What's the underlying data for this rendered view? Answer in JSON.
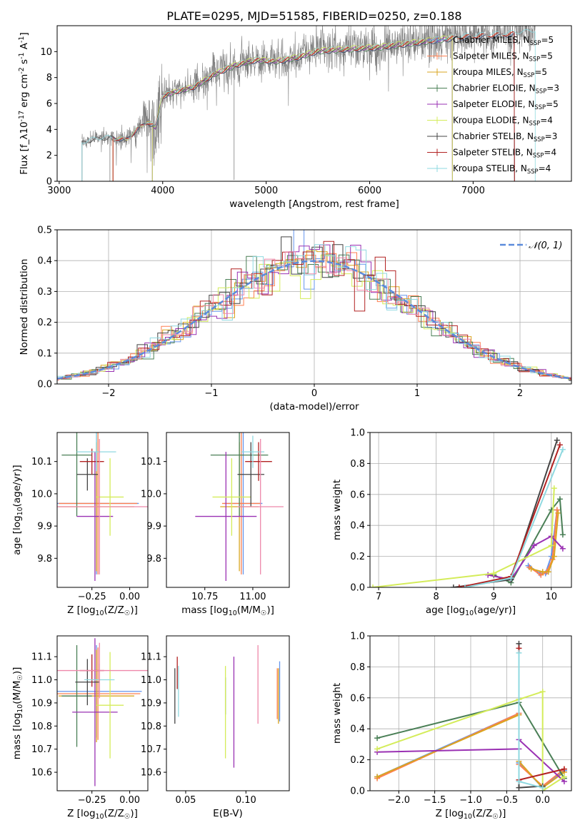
{
  "figure": {
    "title": "PLATE=0295, MJD=51585, FIBERID=0250, z=0.188"
  },
  "colors": {
    "spectrum": "#808080",
    "Chabrier MILES": "#6495ed",
    "Salpeter MILES": "#ff7f50",
    "Kroupa MILES": "#daa520",
    "Chabrier ELODIE": "#4a7f56",
    "Salpeter ELODIE": "#9a31b3",
    "Kroupa ELODIE": "#d4ec5a",
    "Chabrier STELIB": "#444444",
    "Salpeter STELIB": "#b22222",
    "Kroupa STELIB": "#8fd9e0",
    "normal": "#5b8bdb",
    "pink": "#ee88aa"
  },
  "chart_data": [
    {
      "type": "line",
      "panel": "spectrum",
      "xlabel": "wavelength [Angstrom, rest frame]",
      "ylabel": "Flux [f_λ10^-17 erg cm^-2 s^-1 A^-1]",
      "xlim": [
        2980,
        7950
      ],
      "ylim": [
        0,
        12
      ],
      "xticks": [
        3000,
        4000,
        5000,
        6000,
        7000
      ],
      "yticks": [
        0,
        2,
        4,
        6,
        8,
        10
      ],
      "legend": "upper right",
      "series_names": [
        "Chabrier MILES",
        "Salpeter MILES",
        "Kroupa MILES",
        "Chabrier ELODIE",
        "Salpeter ELODIE",
        "Kroupa ELODIE",
        "Chabrier STELIB",
        "Salpeter STELIB",
        "Kroupa STELIB"
      ],
      "legend_labels": [
        {
          "series": "Chabrier MILES",
          "pre": "Chabrier MILES, N",
          "sub": "SSP",
          "post": "=5"
        },
        {
          "series": "Salpeter MILES",
          "pre": "Salpeter MILES, N",
          "sub": "SSP",
          "post": "=5"
        },
        {
          "series": "Kroupa MILES",
          "pre": "Kroupa MILES, N",
          "sub": "SSP",
          "post": "=5"
        },
        {
          "series": "Chabrier ELODIE",
          "pre": "Chabrier ELODIE, N",
          "sub": "SSP",
          "post": "=3"
        },
        {
          "series": "Salpeter ELODIE",
          "pre": "Salpeter ELODIE, N",
          "sub": "SSP",
          "post": "=5"
        },
        {
          "series": "Kroupa ELODIE",
          "pre": "Kroupa ELODIE, N",
          "sub": "SSP",
          "post": "=4"
        },
        {
          "series": "Chabrier STELIB",
          "pre": "Chabrier STELIB, N",
          "sub": "SSP",
          "post": "=3"
        },
        {
          "series": "Salpeter STELIB",
          "pre": "Salpeter STELIB, N",
          "sub": "SSP",
          "post": "=4"
        },
        {
          "series": "Kroupa STELIB",
          "pre": "Kroupa STELIB, N",
          "sub": "SSP",
          "post": "=4"
        }
      ],
      "continuum": [
        [
          3220,
          3.0
        ],
        [
          3350,
          3.3
        ],
        [
          3500,
          3.4
        ],
        [
          3650,
          3.2
        ],
        [
          3750,
          4.0
        ],
        [
          3850,
          4.6
        ],
        [
          3930,
          4.2
        ],
        [
          4000,
          6.6
        ],
        [
          4150,
          7.0
        ],
        [
          4300,
          7.3
        ],
        [
          4500,
          8.3
        ],
        [
          4700,
          9.0
        ],
        [
          4900,
          9.4
        ],
        [
          5100,
          9.3
        ],
        [
          5300,
          9.6
        ],
        [
          5500,
          10.1
        ],
        [
          5700,
          10.2
        ],
        [
          5900,
          10.3
        ],
        [
          6100,
          10.4
        ],
        [
          6300,
          10.6
        ],
        [
          6500,
          10.8
        ],
        [
          6700,
          11.0
        ],
        [
          6900,
          11.2
        ],
        [
          7100,
          11.3
        ],
        [
          7300,
          11.4
        ],
        [
          7500,
          11.5
        ],
        [
          7600,
          11.6
        ]
      ],
      "model_ranges": {
        "Chabrier MILES": [
          3520,
          7400
        ],
        "Salpeter MILES": [
          3520,
          7400
        ],
        "Kroupa MILES": [
          3520,
          6800
        ],
        "Chabrier ELODIE": [
          3900,
          6800
        ],
        "Salpeter ELODIE": [
          3900,
          6800
        ],
        "Kroupa ELODIE": [
          3900,
          6800
        ],
        "Chabrier STELIB": [
          3220,
          7400
        ],
        "Salpeter STELIB": [
          3520,
          7400
        ],
        "Kroupa STELIB": [
          3220,
          7600
        ]
      }
    },
    {
      "type": "line",
      "panel": "residuals",
      "xlabel": "(data-model)/error",
      "ylabel": "Normed distribution",
      "xlim": [
        -2.5,
        2.5
      ],
      "ylim": [
        0,
        0.5
      ],
      "xticks": [
        -2,
        -1,
        0,
        1,
        2
      ],
      "yticks": [
        0.0,
        0.1,
        0.2,
        0.3,
        0.4,
        0.5
      ],
      "grid": true,
      "legend": "upper right",
      "legend_label": "𝒩(0, 1)",
      "bin_width": 0.1
    },
    {
      "type": "scatter",
      "panel": "age-vs-Z",
      "xlabel": "Z [log10(Z/Z☉)]",
      "ylabel": "age [log10(age/yr)]",
      "xlim": [
        -0.48,
        0.12
      ],
      "ylim": [
        9.71,
        10.19
      ],
      "xticks": [
        -0.25,
        0.0
      ],
      "yticks": [
        9.8,
        9.9,
        10.0,
        10.1
      ],
      "points": [
        {
          "series": "Chabrier MILES",
          "x": -0.22,
          "y": 9.97,
          "xerr": 0.28,
          "yerr": 0.22
        },
        {
          "series": "Salpeter MILES",
          "x": -0.21,
          "y": 9.97,
          "xerr": 0.26,
          "yerr": 0.22
        },
        {
          "series": "Kroupa MILES",
          "x": -0.22,
          "y": 9.96,
          "xerr": 0.25,
          "yerr": 0.2
        },
        {
          "series": "Chabrier ELODIE",
          "x": -0.35,
          "y": 10.12,
          "xerr": 0.1,
          "yerr": 0.19
        },
        {
          "series": "Salpeter ELODIE",
          "x": -0.23,
          "y": 9.93,
          "xerr": 0.12,
          "yerr": 0.2
        },
        {
          "series": "Kroupa ELODIE",
          "x": -0.13,
          "y": 9.99,
          "xerr": 0.09,
          "yerr": 0.12
        },
        {
          "series": "Chabrier STELIB",
          "x": -0.28,
          "y": 10.06,
          "xerr": 0.07,
          "yerr": 0.05
        },
        {
          "series": "Salpeter STELIB",
          "x": -0.25,
          "y": 10.1,
          "xerr": 0.08,
          "yerr": 0.04
        },
        {
          "series": "Kroupa STELIB",
          "x": -0.22,
          "y": 10.13,
          "xerr": 0.13,
          "yerr": 0.06
        },
        {
          "series": "pink",
          "x": -0.2,
          "y": 9.96,
          "xerr": 0.32,
          "yerr": 0.21
        }
      ]
    },
    {
      "type": "scatter",
      "panel": "age-vs-mass",
      "xlabel": "mass [log10(M/M☉)]",
      "ylabel": "",
      "xlim": [
        10.55,
        11.19
      ],
      "ylim": [
        9.71,
        10.19
      ],
      "xticks": [
        10.75,
        11.0
      ],
      "yticks": [
        9.8,
        9.9,
        10.0,
        10.1
      ],
      "points": [
        {
          "series": "Chabrier MILES",
          "x": 10.95,
          "y": 9.97,
          "xerr": 0.1,
          "yerr": 0.22
        },
        {
          "series": "Salpeter MILES",
          "x": 10.94,
          "y": 9.97,
          "xerr": 0.1,
          "yerr": 0.22
        },
        {
          "series": "Kroupa MILES",
          "x": 10.93,
          "y": 9.96,
          "xerr": 0.1,
          "yerr": 0.2
        },
        {
          "series": "Chabrier ELODIE",
          "x": 10.93,
          "y": 10.12,
          "xerr": 0.15,
          "yerr": 0.19
        },
        {
          "series": "Salpeter ELODIE",
          "x": 10.86,
          "y": 9.93,
          "xerr": 0.16,
          "yerr": 0.2
        },
        {
          "series": "Kroupa ELODIE",
          "x": 10.89,
          "y": 9.99,
          "xerr": 0.1,
          "yerr": 0.12
        },
        {
          "series": "Chabrier STELIB",
          "x": 10.99,
          "y": 10.06,
          "xerr": 0.07,
          "yerr": 0.1
        },
        {
          "series": "Salpeter STELIB",
          "x": 11.03,
          "y": 10.1,
          "xerr": 0.07,
          "yerr": 0.06
        },
        {
          "series": "Kroupa STELIB",
          "x": 11.0,
          "y": 10.13,
          "xerr": 0.06,
          "yerr": 0.05
        },
        {
          "series": "pink",
          "x": 11.04,
          "y": 9.96,
          "xerr": 0.12,
          "yerr": 0.21
        }
      ]
    },
    {
      "type": "line",
      "panel": "weight-vs-age",
      "xlabel": "age [log10(age/yr)]",
      "ylabel": "mass weight",
      "xlim": [
        6.85,
        10.35
      ],
      "ylim": [
        0,
        1
      ],
      "xticks": [
        7,
        8,
        9,
        10
      ],
      "yticks": [
        0.0,
        0.2,
        0.4,
        0.6,
        0.8,
        1.0
      ],
      "grid": true,
      "series": [
        {
          "name": "Chabrier MILES",
          "x": [
            9.6,
            9.8,
            9.9,
            10.0,
            10.1
          ],
          "y": [
            0.14,
            0.09,
            0.09,
            0.2,
            0.5
          ]
        },
        {
          "name": "Salpeter MILES",
          "x": [
            9.62,
            9.82,
            9.92,
            10.02,
            10.1
          ],
          "y": [
            0.13,
            0.08,
            0.1,
            0.18,
            0.5
          ]
        },
        {
          "name": "Kroupa MILES",
          "x": [
            9.65,
            9.85,
            9.95,
            10.05,
            10.12
          ],
          "y": [
            0.12,
            0.1,
            0.1,
            0.2,
            0.48
          ]
        },
        {
          "name": "Chabrier ELODIE",
          "x": [
            9.0,
            9.3,
            10.0,
            10.15,
            10.2
          ],
          "y": [
            0.08,
            0.03,
            0.5,
            0.57,
            0.34
          ]
        },
        {
          "name": "Salpeter ELODIE",
          "x": [
            8.9,
            9.3,
            9.7,
            10.0,
            10.2
          ],
          "y": [
            0.08,
            0.05,
            0.27,
            0.33,
            0.25
          ]
        },
        {
          "name": "Kroupa ELODIE",
          "x": [
            6.9,
            9.0,
            10.0,
            10.05
          ],
          "y": [
            0.0,
            0.09,
            0.27,
            0.64
          ]
        },
        {
          "name": "Chabrier STELIB",
          "x": [
            8.3,
            9.3,
            10.1
          ],
          "y": [
            0.0,
            0.05,
            0.95
          ]
        },
        {
          "name": "Salpeter STELIB",
          "x": [
            8.4,
            9.3,
            10.15
          ],
          "y": [
            0.0,
            0.07,
            0.92
          ]
        },
        {
          "name": "Kroupa STELIB",
          "x": [
            8.5,
            9.3,
            10.2
          ],
          "y": [
            0.0,
            0.06,
            0.89
          ]
        }
      ]
    },
    {
      "type": "scatter",
      "panel": "mass-vs-Z",
      "xlabel": "Z [log10(Z/Z☉)]",
      "ylabel": "mass [log10(M/M☉)]",
      "xlim": [
        -0.48,
        0.12
      ],
      "ylim": [
        10.52,
        11.19
      ],
      "xticks": [
        -0.25,
        0.0
      ],
      "yticks": [
        10.6,
        10.7,
        10.8,
        10.9,
        11.0,
        11.1
      ],
      "points": [
        {
          "series": "Chabrier MILES",
          "x": -0.22,
          "y": 10.95,
          "xerr": 0.3,
          "yerr": 0.2
        },
        {
          "series": "Salpeter MILES",
          "x": -0.21,
          "y": 10.94,
          "xerr": 0.28,
          "yerr": 0.2
        },
        {
          "series": "Kroupa MILES",
          "x": -0.22,
          "y": 10.93,
          "xerr": 0.25,
          "yerr": 0.2
        },
        {
          "series": "Chabrier ELODIE",
          "x": -0.35,
          "y": 10.93,
          "xerr": 0.1,
          "yerr": 0.22
        },
        {
          "series": "Salpeter ELODIE",
          "x": -0.23,
          "y": 10.86,
          "xerr": 0.15,
          "yerr": 0.32
        },
        {
          "series": "Kroupa ELODIE",
          "x": -0.13,
          "y": 10.89,
          "xerr": 0.09,
          "yerr": 0.23
        },
        {
          "series": "Chabrier STELIB",
          "x": -0.28,
          "y": 10.99,
          "xerr": 0.08,
          "yerr": 0.1
        },
        {
          "series": "Salpeter STELIB",
          "x": -0.25,
          "y": 11.04,
          "xerr": 0.08,
          "yerr": 0.07
        },
        {
          "series": "Kroupa STELIB",
          "x": -0.2,
          "y": 11.0,
          "xerr": 0.1,
          "yerr": 0.07
        },
        {
          "series": "pink",
          "x": -0.2,
          "y": 11.04,
          "xerr": 0.32,
          "yerr": 0.12
        }
      ]
    },
    {
      "type": "scatter",
      "panel": "mass-vs-EBV",
      "xlabel": "E(B-V)",
      "ylabel": "",
      "xlim": [
        0.034,
        0.136
      ],
      "ylim": [
        10.52,
        11.19
      ],
      "xticks": [
        0.05,
        0.1
      ],
      "yticks": [
        10.6,
        10.7,
        10.8,
        10.9,
        11.0,
        11.1
      ],
      "points": [
        {
          "series": "Chabrier MILES",
          "x": 0.128,
          "y": 10.95,
          "xerr": 0,
          "yerr": 0.13
        },
        {
          "series": "Salpeter MILES",
          "x": 0.126,
          "y": 10.94,
          "xerr": 0,
          "yerr": 0.11
        },
        {
          "series": "Kroupa MILES",
          "x": 0.127,
          "y": 10.93,
          "xerr": 0,
          "yerr": 0.12
        },
        {
          "series": "Chabrier ELODIE",
          "x": 0.083,
          "y": 10.93,
          "xerr": 0,
          "yerr": 0.08
        },
        {
          "series": "Salpeter ELODIE",
          "x": 0.09,
          "y": 10.86,
          "xerr": 0,
          "yerr": 0.24
        },
        {
          "series": "Kroupa ELODIE",
          "x": 0.083,
          "y": 10.86,
          "xerr": 0,
          "yerr": 0.2
        },
        {
          "series": "Chabrier STELIB",
          "x": 0.041,
          "y": 10.93,
          "xerr": 0,
          "yerr": 0.12
        },
        {
          "series": "Salpeter STELIB",
          "x": 0.043,
          "y": 11.03,
          "xerr": 0,
          "yerr": 0.07
        },
        {
          "series": "Kroupa STELIB",
          "x": 0.044,
          "y": 10.95,
          "xerr": 0,
          "yerr": 0.11
        },
        {
          "series": "pink",
          "x": 0.11,
          "y": 10.98,
          "xerr": 0,
          "yerr": 0.17
        }
      ]
    },
    {
      "type": "line",
      "panel": "weight-vs-Z",
      "xlabel": "Z [log10(Z/Z☉)]",
      "ylabel": "mass weight",
      "xlim": [
        -2.4,
        0.4
      ],
      "ylim": [
        0,
        1
      ],
      "xticks": [
        -2.0,
        -1.5,
        -1.0,
        -0.5,
        0.0
      ],
      "yticks": [
        0.0,
        0.2,
        0.4,
        0.6,
        0.8,
        1.0
      ],
      "grid": true,
      "series": [
        {
          "name": "Chabrier MILES",
          "x": [
            -2.3,
            -0.33,
            -0.33,
            0.0,
            0.3
          ],
          "y": [
            0.09,
            0.5,
            0.18,
            0.02,
            0.13
          ]
        },
        {
          "name": "Salpeter MILES",
          "x": [
            -2.3,
            -0.33,
            -0.33,
            0.0,
            0.3
          ],
          "y": [
            0.08,
            0.5,
            0.17,
            0.03,
            0.14
          ]
        },
        {
          "name": "Kroupa MILES",
          "x": [
            -2.3,
            -0.33,
            -0.33,
            0.0,
            0.3
          ],
          "y": [
            0.09,
            0.49,
            0.19,
            0.02,
            0.12
          ]
        },
        {
          "name": "Chabrier ELODIE",
          "x": [
            -2.3,
            -0.33,
            0.3
          ],
          "y": [
            0.34,
            0.57,
            0.08
          ]
        },
        {
          "name": "Salpeter ELODIE",
          "x": [
            -2.3,
            -0.33,
            -0.33,
            0.3
          ],
          "y": [
            0.25,
            0.27,
            0.33,
            0.06
          ]
        },
        {
          "name": "Kroupa ELODIE",
          "x": [
            -2.3,
            -0.33,
            0.0,
            0.0,
            0.3
          ],
          "y": [
            0.27,
            0.59,
            0.64,
            0.0,
            0.09
          ]
        },
        {
          "name": "Chabrier STELIB",
          "x": [
            -0.33,
            -0.33,
            0.0
          ],
          "y": [
            0.95,
            0.02,
            0.03
          ]
        },
        {
          "name": "Salpeter STELIB",
          "x": [
            -0.33,
            -0.33,
            0.3
          ],
          "y": [
            0.92,
            0.07,
            0.14
          ]
        },
        {
          "name": "Kroupa STELIB",
          "x": [
            -0.33,
            -0.33,
            0.0
          ],
          "y": [
            0.89,
            0.06,
            0.02
          ]
        }
      ]
    }
  ]
}
